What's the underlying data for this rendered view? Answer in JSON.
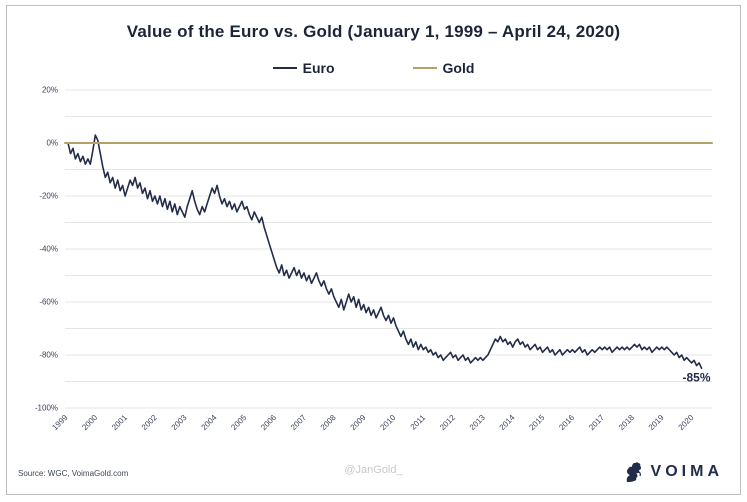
{
  "title": "Value of the Euro vs. Gold (January 1, 1999 – April 24, 2020)",
  "legend": {
    "items": [
      {
        "label": "Euro",
        "color": "#232d4a"
      },
      {
        "label": "Gold",
        "color": "#b4a06a"
      }
    ]
  },
  "colors": {
    "navy": "#232d4a",
    "gold": "#b4a06a",
    "gridline": "#e5e5e5",
    "axis_text": "#3c4257",
    "watermark": "#c8c8c8",
    "border": "#bdbdbd",
    "source_text": "#3f4654"
  },
  "footer": {
    "source": "Source: WGC, VoimaGold.com",
    "watermark": "@JanGold_",
    "brand": "VOIMA"
  },
  "chart_data": {
    "type": "line",
    "title": "Value of the Euro vs. Gold (January 1, 1999 – April 24, 2020)",
    "xlabel": "",
    "ylabel": "",
    "xlim": [
      1998.9,
      2020.6
    ],
    "ylim": [
      -100,
      20
    ],
    "grid": "horizontal",
    "legend_position": "top",
    "x_ticks": [
      1999,
      2000,
      2001,
      2002,
      2003,
      2004,
      2005,
      2006,
      2007,
      2008,
      2009,
      2010,
      2011,
      2012,
      2013,
      2014,
      2015,
      2016,
      2017,
      2018,
      2019,
      2020
    ],
    "y_ticks": [
      {
        "value": 20,
        "label": "20%"
      },
      {
        "value": 0,
        "label": "0%"
      },
      {
        "value": -20,
        "label": "-20%"
      },
      {
        "value": -40,
        "label": "-40%"
      },
      {
        "value": -60,
        "label": "-60%"
      },
      {
        "value": -80,
        "label": "-80%"
      },
      {
        "value": -100,
        "label": "-100%"
      }
    ],
    "y_gridlines": [
      20,
      10,
      0,
      -10,
      -20,
      -30,
      -40,
      -50,
      -60,
      -70,
      -80,
      -90,
      -100
    ],
    "series": [
      {
        "name": "Euro",
        "color": "#232d4a",
        "x_start": 1999.0,
        "x_step": 0.0833333,
        "values": [
          0,
          -4,
          -2,
          -6,
          -4,
          -7,
          -5,
          -8,
          -6,
          -8,
          -3,
          3,
          1,
          -4,
          -9,
          -13,
          -11,
          -15,
          -13,
          -17,
          -14,
          -18,
          -16,
          -20,
          -17,
          -14,
          -16,
          -13,
          -17,
          -15,
          -19,
          -17,
          -21,
          -18,
          -22,
          -20,
          -23,
          -20,
          -24,
          -21,
          -25,
          -22,
          -26,
          -23,
          -27,
          -24,
          -26,
          -28,
          -24,
          -21,
          -18,
          -22,
          -25,
          -27,
          -24,
          -26,
          -23,
          -20,
          -17,
          -19,
          -16,
          -20,
          -23,
          -21,
          -24,
          -22,
          -25,
          -23,
          -26,
          -24,
          -22,
          -25,
          -24,
          -27,
          -29,
          -26,
          -28,
          -30,
          -28,
          -32,
          -35,
          -38,
          -41,
          -44,
          -47,
          -49,
          -46,
          -50,
          -48,
          -51,
          -49,
          -47,
          -50,
          -48,
          -51,
          -49,
          -52,
          -50,
          -53,
          -51,
          -49,
          -52,
          -54,
          -52,
          -55,
          -57,
          -55,
          -58,
          -60,
          -62,
          -59,
          -63,
          -60,
          -57,
          -60,
          -58,
          -62,
          -59,
          -63,
          -61,
          -64,
          -62,
          -65,
          -63,
          -66,
          -64,
          -62,
          -65,
          -67,
          -65,
          -68,
          -66,
          -69,
          -71,
          -73,
          -71,
          -74,
          -76,
          -74,
          -77,
          -75,
          -78,
          -76,
          -78,
          -77,
          -79,
          -78,
          -80,
          -79,
          -81,
          -80,
          -82,
          -81,
          -80,
          -79,
          -81,
          -80,
          -82,
          -81,
          -80,
          -82,
          -81,
          -83,
          -82,
          -81,
          -82,
          -81,
          -82,
          -81,
          -80,
          -78,
          -76,
          -74,
          -75,
          -73,
          -75,
          -74,
          -76,
          -75,
          -77,
          -75,
          -74,
          -76,
          -75,
          -77,
          -76,
          -78,
          -77,
          -76,
          -78,
          -77,
          -79,
          -78,
          -77,
          -79,
          -78,
          -80,
          -79,
          -78,
          -80,
          -79,
          -78,
          -79,
          -78,
          -79,
          -78,
          -77,
          -79,
          -78,
          -80,
          -79,
          -78,
          -79,
          -78,
          -77,
          -78,
          -77,
          -78,
          -77,
          -79,
          -78,
          -77,
          -78,
          -77,
          -78,
          -77,
          -78,
          -77,
          -76,
          -77,
          -76,
          -78,
          -77,
          -78,
          -77,
          -79,
          -78,
          -77,
          -78,
          -77,
          -78,
          -77,
          -78,
          -79,
          -80,
          -79,
          -81,
          -80,
          -82,
          -81,
          -82,
          -83,
          -82,
          -84,
          -83,
          -85
        ]
      },
      {
        "name": "Gold",
        "color": "#b4a06a",
        "x_start": 1998.9,
        "x_step": 21.7,
        "values": [
          0,
          0
        ]
      }
    ],
    "annotation": {
      "text": "-85%",
      "x": 2020.55,
      "y": -90
    }
  }
}
